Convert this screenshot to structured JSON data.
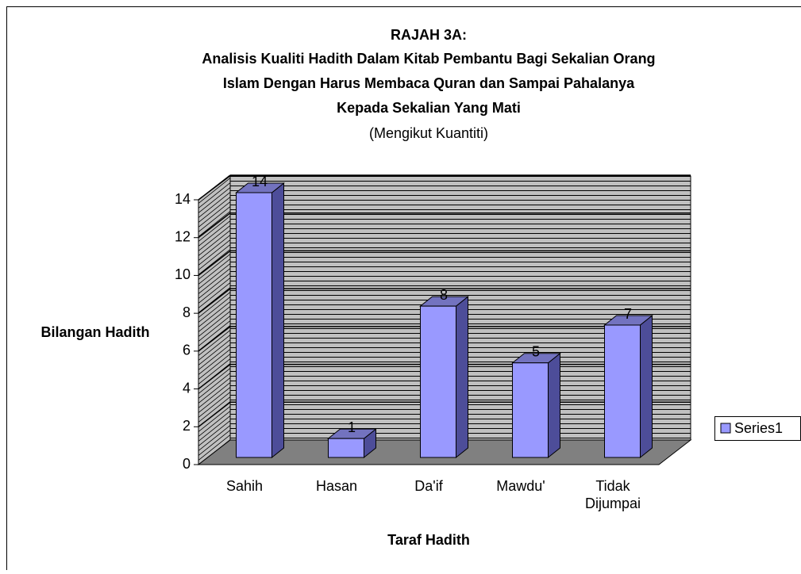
{
  "chart_data": {
    "type": "bar3d",
    "title": [
      "RAJAH 3A:",
      "Analisis Kualiti Hadith Dalam Kitab Pembantu Bagi Sekalian Orang",
      "Islam Dengan Harus Membaca Quran dan Sampai Pahalanya",
      "Kepada Sekalian Yang Mati"
    ],
    "subtitle": "(Mengikut Kuantiti)",
    "y_label": "Bilangan Hadith",
    "x_label": "Taraf Hadith",
    "categories": [
      "Sahih",
      "Hasan",
      "Da'if",
      "Mawdu'",
      "Tidak Dijumpai"
    ],
    "series": [
      {
        "name": "Series1",
        "color": "#9999ff",
        "values": [
          14,
          1,
          8,
          5,
          7
        ]
      }
    ],
    "ylim": [
      0,
      14
    ],
    "yticks": [
      0,
      2,
      4,
      6,
      8,
      10,
      12,
      14
    ],
    "grid": true,
    "legend": "right"
  }
}
